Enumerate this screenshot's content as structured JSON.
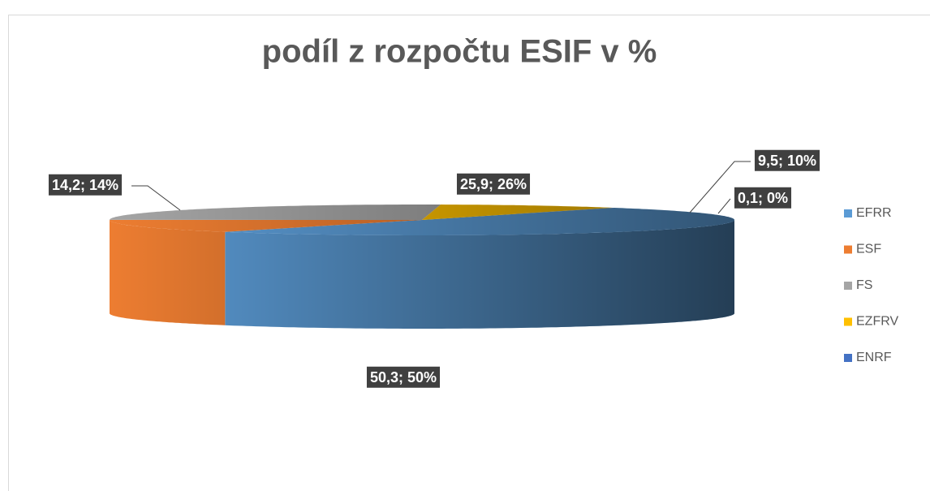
{
  "chart_data": {
    "type": "pie3d",
    "title": "podíl z rozpočtu ESIF v %",
    "categories": [
      "EFRR",
      "ESF",
      "FS",
      "EZFRV",
      "ENRF"
    ],
    "values": [
      50.3,
      14.2,
      25.9,
      9.5,
      0.1
    ],
    "value_labels": [
      "50,3; 50%",
      "14,2; 14%",
      "25,9; 26%",
      "9,5; 10%",
      "0,1; 0%"
    ],
    "colors": [
      "#5b9bd5",
      "#ed7d31",
      "#a5a5a5",
      "#ffc000",
      "#4472c4"
    ],
    "legend": "right"
  }
}
